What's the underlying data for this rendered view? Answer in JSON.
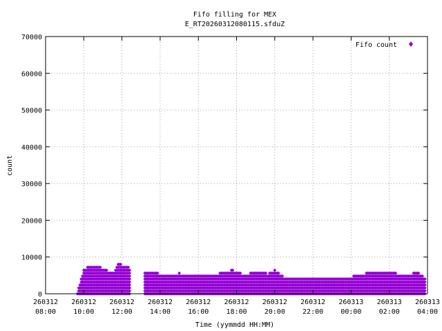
{
  "chart_data": {
    "type": "scatter",
    "title": "Fifo filling for MEX",
    "subtitle": "E_RT20260312080115.sfduZ",
    "xlabel": "Time (yymmdd HH:MM)",
    "ylabel": "count",
    "xlim": [
      "2026-03-12 08:00",
      "2026-03-13 04:00"
    ],
    "ylim": [
      0,
      70000
    ],
    "y_ticks": [
      "0",
      "10000",
      "20000",
      "30000",
      "40000",
      "50000",
      "60000",
      "70000"
    ],
    "x_ticks": [
      {
        "date": "260312",
        "time": "08:00"
      },
      {
        "date": "260312",
        "time": "10:00"
      },
      {
        "date": "260312",
        "time": "12:00"
      },
      {
        "date": "260312",
        "time": "14:00"
      },
      {
        "date": "260312",
        "time": "16:00"
      },
      {
        "date": "260312",
        "time": "18:00"
      },
      {
        "date": "260312",
        "time": "20:00"
      },
      {
        "date": "260312",
        "time": "22:00"
      },
      {
        "date": "260313",
        "time": "00:00"
      },
      {
        "date": "260313",
        "time": "02:00"
      },
      {
        "date": "260313",
        "time": "04:00"
      }
    ],
    "grid": true,
    "legend_position": "top-right",
    "series": [
      {
        "name": "Fifo count",
        "color": "#9400d3",
        "marker": "diamond",
        "envelope": {
          "x": [
            "2026-03-12 09:40",
            "2026-03-12 10:00",
            "2026-03-12 10:30",
            "2026-03-12 11:00",
            "2026-03-12 11:30",
            "2026-03-12 11:50",
            "2026-03-12 12:00",
            "2026-03-12 12:20",
            "2026-03-12 13:15",
            "2026-03-12 14:00",
            "2026-03-12 15:00",
            "2026-03-12 16:00",
            "2026-03-12 17:00",
            "2026-03-12 17:45",
            "2026-03-12 18:30",
            "2026-03-12 19:00",
            "2026-03-12 19:40",
            "2026-03-12 20:00",
            "2026-03-12 20:30",
            "2026-03-12 22:00",
            "2026-03-13 00:00",
            "2026-03-13 01:00",
            "2026-03-13 01:45",
            "2026-03-13 02:30",
            "2026-03-13 03:00",
            "2026-03-13 03:30",
            "2026-03-13 03:55"
          ],
          "max": [
            500,
            6800,
            7800,
            7000,
            5500,
            8300,
            7800,
            7200,
            6200,
            5500,
            5600,
            5200,
            5500,
            6500,
            5000,
            6300,
            5500,
            6600,
            4500,
            4600,
            4700,
            5900,
            6200,
            5500,
            5300,
            6000,
            4200
          ]
        },
        "gaps": [
          [
            "2026-03-12 12:25",
            "2026-03-12 13:10"
          ]
        ],
        "layer_step": 800
      }
    ]
  }
}
